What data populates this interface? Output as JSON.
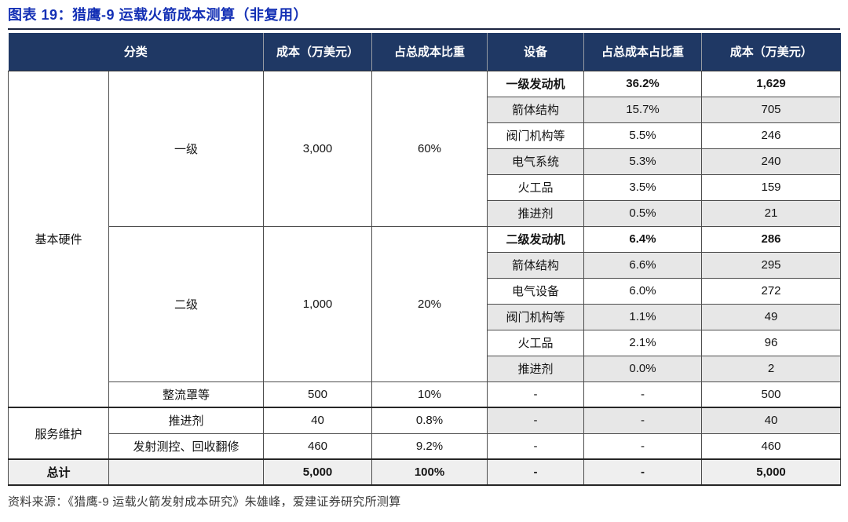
{
  "title": "图表 19：猎鹰-9 运载火箭成本测算（非复用）",
  "source": "资料来源：《猎鹰-9 运载火箭发射成本研究》朱雄峰，爱建证券研究所测算",
  "colors": {
    "title": "#1430b5",
    "header_bg": "#1f3864",
    "band": "#e7e7e7",
    "total_band": "#efefef"
  },
  "table": {
    "headers": [
      "分类",
      "成本（万美元）",
      "占总成本比重",
      "设备",
      "占总成本占比重",
      "成本（万美元）"
    ],
    "rows": [
      {
        "cells": [
          {
            "text": "基本硬件",
            "rowspan": 13,
            "name": "row-group-basic-hardware"
          },
          {
            "text": "一级",
            "rowspan": 6,
            "name": "category-stage1"
          },
          {
            "text": "3,000",
            "rowspan": 6
          },
          {
            "text": "60%",
            "rowspan": 6
          },
          {
            "text": "一级发动机",
            "bold": true
          },
          {
            "text": "36.2%",
            "bold": true
          },
          {
            "text": "1,629",
            "bold": true
          }
        ]
      },
      {
        "cells": [
          {
            "text": "箭体结构",
            "shaded": true
          },
          {
            "text": "15.7%",
            "shaded": true
          },
          {
            "text": "705",
            "shaded": true
          }
        ]
      },
      {
        "cells": [
          {
            "text": "阀门机构等"
          },
          {
            "text": "5.5%"
          },
          {
            "text": "246"
          }
        ]
      },
      {
        "cells": [
          {
            "text": "电气系统",
            "shaded": true
          },
          {
            "text": "5.3%",
            "shaded": true
          },
          {
            "text": "240",
            "shaded": true
          }
        ]
      },
      {
        "cells": [
          {
            "text": "火工品"
          },
          {
            "text": "3.5%"
          },
          {
            "text": "159"
          }
        ]
      },
      {
        "cells": [
          {
            "text": "推进剂",
            "shaded": true
          },
          {
            "text": "0.5%",
            "shaded": true
          },
          {
            "text": "21",
            "shaded": true
          }
        ]
      },
      {
        "cells": [
          {
            "text": "二级",
            "rowspan": 6,
            "name": "category-stage2"
          },
          {
            "text": "1,000",
            "rowspan": 6
          },
          {
            "text": "20%",
            "rowspan": 6
          },
          {
            "text": "二级发动机",
            "bold": true
          },
          {
            "text": "6.4%",
            "bold": true
          },
          {
            "text": "286",
            "bold": true
          }
        ]
      },
      {
        "cells": [
          {
            "text": "箭体结构",
            "shaded": true
          },
          {
            "text": "6.6%",
            "shaded": true
          },
          {
            "text": "295",
            "shaded": true
          }
        ]
      },
      {
        "cells": [
          {
            "text": "电气设备"
          },
          {
            "text": "6.0%"
          },
          {
            "text": "272"
          }
        ]
      },
      {
        "cells": [
          {
            "text": "阀门机构等",
            "shaded": true
          },
          {
            "text": "1.1%",
            "shaded": true
          },
          {
            "text": "49",
            "shaded": true
          }
        ]
      },
      {
        "cells": [
          {
            "text": "火工品"
          },
          {
            "text": "2.1%"
          },
          {
            "text": "96"
          }
        ]
      },
      {
        "cells": [
          {
            "text": "推进剂",
            "shaded": true
          },
          {
            "text": "0.0%",
            "shaded": true
          },
          {
            "text": "2",
            "shaded": true
          }
        ]
      },
      {
        "cells": [
          {
            "text": "整流罩等",
            "name": "category-fairing"
          },
          {
            "text": "500"
          },
          {
            "text": "10%"
          },
          {
            "text": "-"
          },
          {
            "text": "-"
          },
          {
            "text": "500"
          }
        ]
      },
      {
        "section": true,
        "cells": [
          {
            "text": "服务维护",
            "rowspan": 2,
            "name": "row-group-service"
          },
          {
            "text": "推进剂"
          },
          {
            "text": "40"
          },
          {
            "text": "0.8%"
          },
          {
            "text": "-",
            "shaded": true
          },
          {
            "text": "-",
            "shaded": true
          },
          {
            "text": "40",
            "shaded": true
          }
        ]
      },
      {
        "cells": [
          {
            "text": "发射测控、回收翻修"
          },
          {
            "text": "460"
          },
          {
            "text": "9.2%"
          },
          {
            "text": "-"
          },
          {
            "text": "-"
          },
          {
            "text": "460"
          }
        ]
      },
      {
        "section": true,
        "total": true,
        "cells": [
          {
            "text": "总计",
            "name": "row-group-total"
          },
          {
            "text": ""
          },
          {
            "text": "5,000"
          },
          {
            "text": "100%"
          },
          {
            "text": "-"
          },
          {
            "text": "-"
          },
          {
            "text": "5,000"
          }
        ]
      }
    ]
  }
}
